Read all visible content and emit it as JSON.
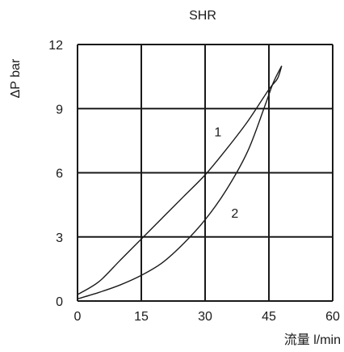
{
  "chart_data": {
    "type": "line",
    "title": "SHR",
    "xlabel": "流量 l/min",
    "ylabel": "ΔP bar",
    "xlim": [
      0,
      60
    ],
    "ylim": [
      0,
      12
    ],
    "x_ticks": [
      "0",
      "15",
      "30",
      "45",
      "60"
    ],
    "y_ticks": [
      "0",
      "3",
      "6",
      "9",
      "12"
    ],
    "grid": true,
    "series": [
      {
        "name": "1",
        "points": [
          [
            0,
            0.3
          ],
          [
            5,
            0.9
          ],
          [
            10,
            1.9
          ],
          [
            15,
            2.9
          ],
          [
            20,
            3.9
          ],
          [
            25,
            4.9
          ],
          [
            30,
            5.9
          ],
          [
            35,
            7.1
          ],
          [
            40,
            8.4
          ],
          [
            45,
            9.9
          ],
          [
            47,
            10.4
          ],
          [
            48,
            11.0
          ]
        ]
      },
      {
        "name": "2",
        "points": [
          [
            0,
            0.1
          ],
          [
            5,
            0.4
          ],
          [
            10,
            0.75
          ],
          [
            15,
            1.2
          ],
          [
            20,
            1.8
          ],
          [
            25,
            2.7
          ],
          [
            30,
            3.8
          ],
          [
            35,
            5.2
          ],
          [
            40,
            7.0
          ],
          [
            44,
            9.1
          ],
          [
            46,
            10.2
          ],
          [
            48,
            11.0
          ]
        ]
      }
    ]
  }
}
